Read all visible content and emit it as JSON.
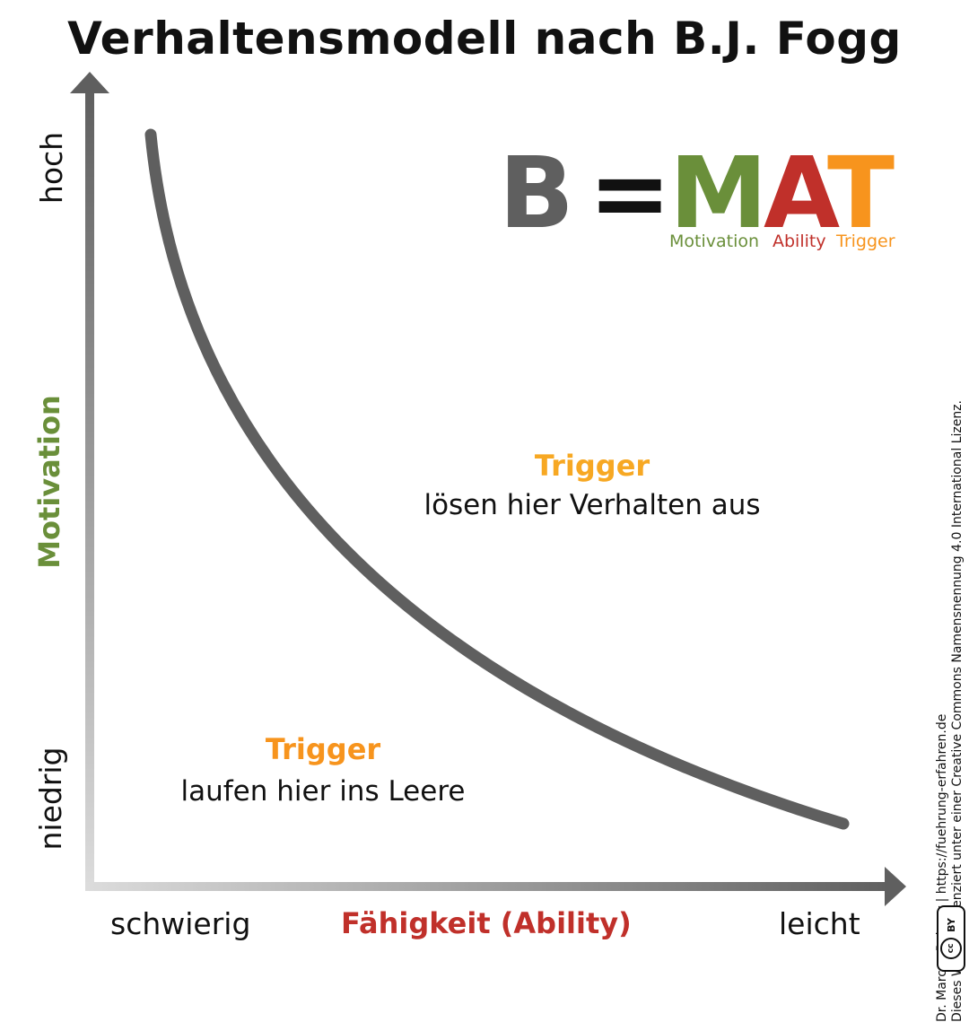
{
  "title": "Verhaltensmodell nach B.J. Fogg",
  "formula": {
    "b": "B",
    "eq": "=",
    "m": "M",
    "a": "A",
    "t": "T",
    "motivation_label": "Motivation",
    "ability_label": "Ability",
    "trigger_label": "Trigger"
  },
  "y_axis": {
    "label": "Motivation",
    "high": "hoch",
    "low": "niedrig"
  },
  "x_axis": {
    "label": "Fähigkeit (Ability)",
    "hard": "schwierig",
    "easy": "leicht"
  },
  "above_curve": {
    "title": "Trigger",
    "text": "lösen hier Verhalten aus"
  },
  "below_curve": {
    "title": "Trigger",
    "text": "laufen hier ins Leere"
  },
  "credits": {
    "line1": "Dr. Marcus Raitner | https://fuehrung-erfahren.de",
    "line2": "Dieses Werk ist lizenziert unter einer Creative Commons Namensnennung 4.0 International Lizenz.",
    "cc": "cc",
    "by": "BY"
  },
  "colors": {
    "motivation": "#6a8f3a",
    "ability": "#c0302a",
    "trigger": "#f7941d",
    "trigger_text": "#f7a823",
    "curve": "#5f5f5f",
    "formula_b": "#5f5f5f",
    "axis_dark": "#5f5f5f",
    "axis_light": "#d8d8d8"
  }
}
